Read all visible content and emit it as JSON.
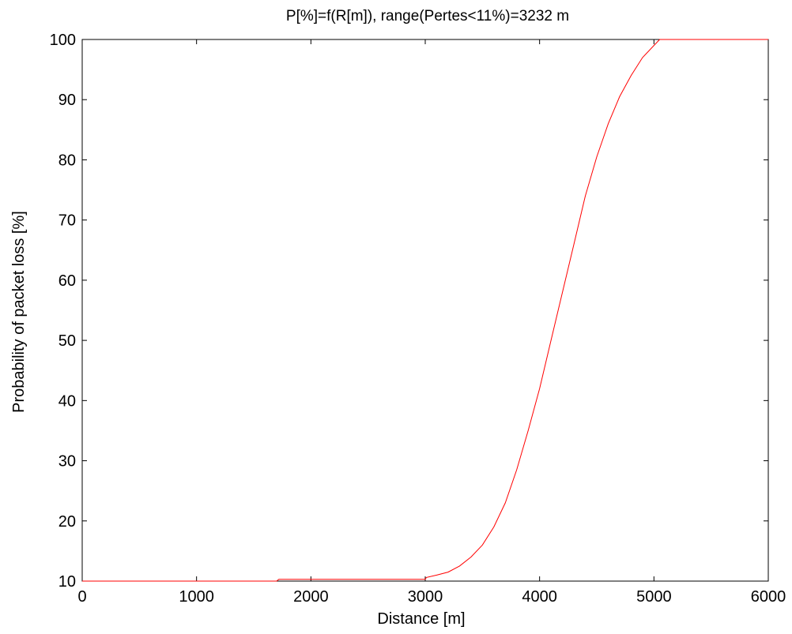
{
  "chart_data": {
    "type": "line",
    "title": "P[%]=f(R[m]), range(Pertes<11%)=3232 m",
    "xlabel": "Distance [m]",
    "ylabel": "Probability of packet loss [%]",
    "xlim": [
      0,
      6000
    ],
    "ylim": [
      10,
      100
    ],
    "x_ticks": [
      "0",
      "1000",
      "2000",
      "3000",
      "4000",
      "5000",
      "6000"
    ],
    "y_ticks": [
      "10",
      "20",
      "30",
      "40",
      "50",
      "60",
      "70",
      "80",
      "90",
      "100"
    ],
    "grid": false,
    "series": [
      {
        "color": "#ff0000",
        "x": [
          0,
          1700,
          1720,
          3000,
          3010,
          3100,
          3200,
          3300,
          3400,
          3500,
          3600,
          3700,
          3800,
          3900,
          4000,
          4100,
          4200,
          4300,
          4400,
          4500,
          4600,
          4700,
          4800,
          4900,
          5000,
          5050,
          5100,
          6000
        ],
        "y": [
          10,
          10,
          10.3,
          10.3,
          10.6,
          11,
          11.5,
          12.5,
          14,
          16,
          19,
          23,
          28.5,
          35,
          42,
          50,
          58,
          66,
          74,
          80.5,
          86,
          90.5,
          94,
          97,
          99,
          100,
          100,
          100
        ]
      }
    ]
  }
}
